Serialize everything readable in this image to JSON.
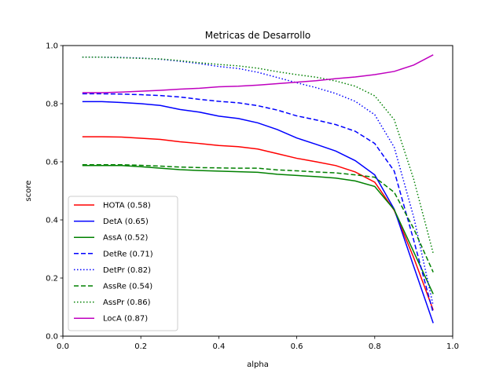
{
  "chart_data": {
    "type": "line",
    "title": "Metricas de Desarrollo",
    "xlabel": "alpha",
    "ylabel": "score",
    "xlim": [
      0.0,
      1.0
    ],
    "ylim": [
      0.0,
      1.0
    ],
    "xticks": [
      "0.0",
      "0.2",
      "0.4",
      "0.6",
      "0.8",
      "1.0"
    ],
    "yticks": [
      "0.0",
      "0.2",
      "0.4",
      "0.6",
      "0.8",
      "1.0"
    ],
    "grid": false,
    "legend_position": "lower-left",
    "x": [
      0.05,
      0.1,
      0.15,
      0.2,
      0.25,
      0.3,
      0.35,
      0.4,
      0.45,
      0.5,
      0.55,
      0.6,
      0.65,
      0.7,
      0.75,
      0.8,
      0.85,
      0.9,
      0.95
    ],
    "series": [
      {
        "name": "HOTA (0.58)",
        "color": "#ff0000",
        "dash": "solid",
        "values": [
          0.686,
          0.686,
          0.685,
          0.681,
          0.677,
          0.669,
          0.663,
          0.656,
          0.652,
          0.644,
          0.628,
          0.612,
          0.6,
          0.587,
          0.565,
          0.53,
          0.433,
          0.27,
          0.09
        ]
      },
      {
        "name": "DetA (0.65)",
        "color": "#0000ff",
        "dash": "solid",
        "values": [
          0.807,
          0.807,
          0.804,
          0.8,
          0.794,
          0.78,
          0.771,
          0.757,
          0.749,
          0.734,
          0.711,
          0.682,
          0.66,
          0.637,
          0.604,
          0.555,
          0.437,
          0.24,
          0.045
        ]
      },
      {
        "name": "AssA (0.52)",
        "color": "#008000",
        "dash": "solid",
        "values": [
          0.587,
          0.587,
          0.587,
          0.583,
          0.578,
          0.573,
          0.57,
          0.568,
          0.566,
          0.564,
          0.557,
          0.553,
          0.549,
          0.544,
          0.534,
          0.515,
          0.435,
          0.29,
          0.145
        ]
      },
      {
        "name": "DetRe (0.71)",
        "color": "#0000ff",
        "dash": "dashed",
        "values": [
          0.834,
          0.834,
          0.833,
          0.831,
          0.828,
          0.823,
          0.815,
          0.808,
          0.803,
          0.793,
          0.778,
          0.758,
          0.744,
          0.728,
          0.705,
          0.663,
          0.568,
          0.33,
          0.08
        ]
      },
      {
        "name": "DetPr (0.82)",
        "color": "#0000ff",
        "dash": "dotted",
        "values": [
          0.96,
          0.96,
          0.959,
          0.957,
          0.953,
          0.946,
          0.938,
          0.928,
          0.921,
          0.908,
          0.89,
          0.872,
          0.855,
          0.835,
          0.808,
          0.762,
          0.65,
          0.41,
          0.105
        ]
      },
      {
        "name": "AssRe (0.54)",
        "color": "#008000",
        "dash": "dashed",
        "values": [
          0.59,
          0.59,
          0.59,
          0.588,
          0.585,
          0.582,
          0.58,
          0.579,
          0.578,
          0.578,
          0.572,
          0.569,
          0.565,
          0.562,
          0.555,
          0.547,
          0.495,
          0.37,
          0.22
        ]
      },
      {
        "name": "AssPr (0.86)",
        "color": "#008000",
        "dash": "dotted",
        "values": [
          0.96,
          0.96,
          0.958,
          0.956,
          0.954,
          0.948,
          0.941,
          0.935,
          0.93,
          0.922,
          0.91,
          0.9,
          0.891,
          0.878,
          0.86,
          0.827,
          0.745,
          0.54,
          0.285
        ]
      },
      {
        "name": "LocA (0.87)",
        "color": "#bf00bf",
        "dash": "solid",
        "values": [
          0.838,
          0.838,
          0.84,
          0.843,
          0.846,
          0.85,
          0.853,
          0.858,
          0.86,
          0.864,
          0.869,
          0.874,
          0.879,
          0.886,
          0.892,
          0.9,
          0.911,
          0.933,
          0.968
        ]
      }
    ]
  }
}
